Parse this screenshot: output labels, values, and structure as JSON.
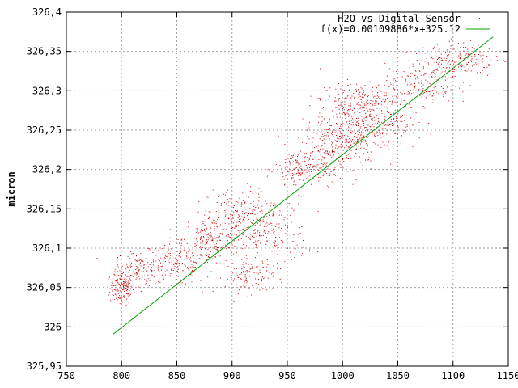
{
  "chart_data": {
    "type": "scatter",
    "title": "",
    "xlabel": "",
    "ylabel": "micron",
    "xlim": [
      750,
      1150
    ],
    "ylim": [
      325.95,
      326.4
    ],
    "grid": true,
    "legend_position": "top-right",
    "x_ticks": [
      "750",
      "800",
      "850",
      "900",
      "950",
      "1000",
      "1050",
      "1100",
      "1150"
    ],
    "y_ticks": [
      "325,95",
      "326",
      "326,05",
      "326,1",
      "326,15",
      "326,2",
      "326,25",
      "326,3",
      "326,35",
      "326,4"
    ],
    "colors": {
      "points": "#cc0000",
      "fit": "#00a000",
      "grid": "#a0a0a0"
    },
    "series": [
      {
        "name": "H2O vs Digital Sensor",
        "kind": "points",
        "clusters": [
          {
            "x": 800,
            "y": 326.05,
            "sx": 6,
            "sy": 0.012,
            "n": 160
          },
          {
            "x": 815,
            "y": 326.075,
            "sx": 12,
            "sy": 0.012,
            "n": 140
          },
          {
            "x": 850,
            "y": 326.08,
            "sx": 16,
            "sy": 0.015,
            "n": 180
          },
          {
            "x": 880,
            "y": 326.11,
            "sx": 14,
            "sy": 0.018,
            "n": 220
          },
          {
            "x": 905,
            "y": 326.14,
            "sx": 15,
            "sy": 0.02,
            "n": 200
          },
          {
            "x": 935,
            "y": 326.12,
            "sx": 18,
            "sy": 0.025,
            "n": 200
          },
          {
            "x": 915,
            "y": 326.065,
            "sx": 12,
            "sy": 0.012,
            "n": 110
          },
          {
            "x": 960,
            "y": 326.2,
            "sx": 12,
            "sy": 0.015,
            "n": 150
          },
          {
            "x": 985,
            "y": 326.22,
            "sx": 16,
            "sy": 0.02,
            "n": 200
          },
          {
            "x": 1005,
            "y": 326.25,
            "sx": 15,
            "sy": 0.022,
            "n": 240
          },
          {
            "x": 1035,
            "y": 326.26,
            "sx": 18,
            "sy": 0.02,
            "n": 220
          },
          {
            "x": 1015,
            "y": 326.29,
            "sx": 20,
            "sy": 0.012,
            "n": 180
          },
          {
            "x": 1070,
            "y": 326.31,
            "sx": 18,
            "sy": 0.015,
            "n": 200
          },
          {
            "x": 1105,
            "y": 326.34,
            "sx": 18,
            "sy": 0.012,
            "n": 200
          }
        ]
      },
      {
        "name": "f(x)=0.00109886*x+325.12",
        "kind": "line",
        "slope": 0.00109886,
        "intercept": 325.12,
        "x_range": [
          792,
          1136
        ]
      }
    ]
  }
}
